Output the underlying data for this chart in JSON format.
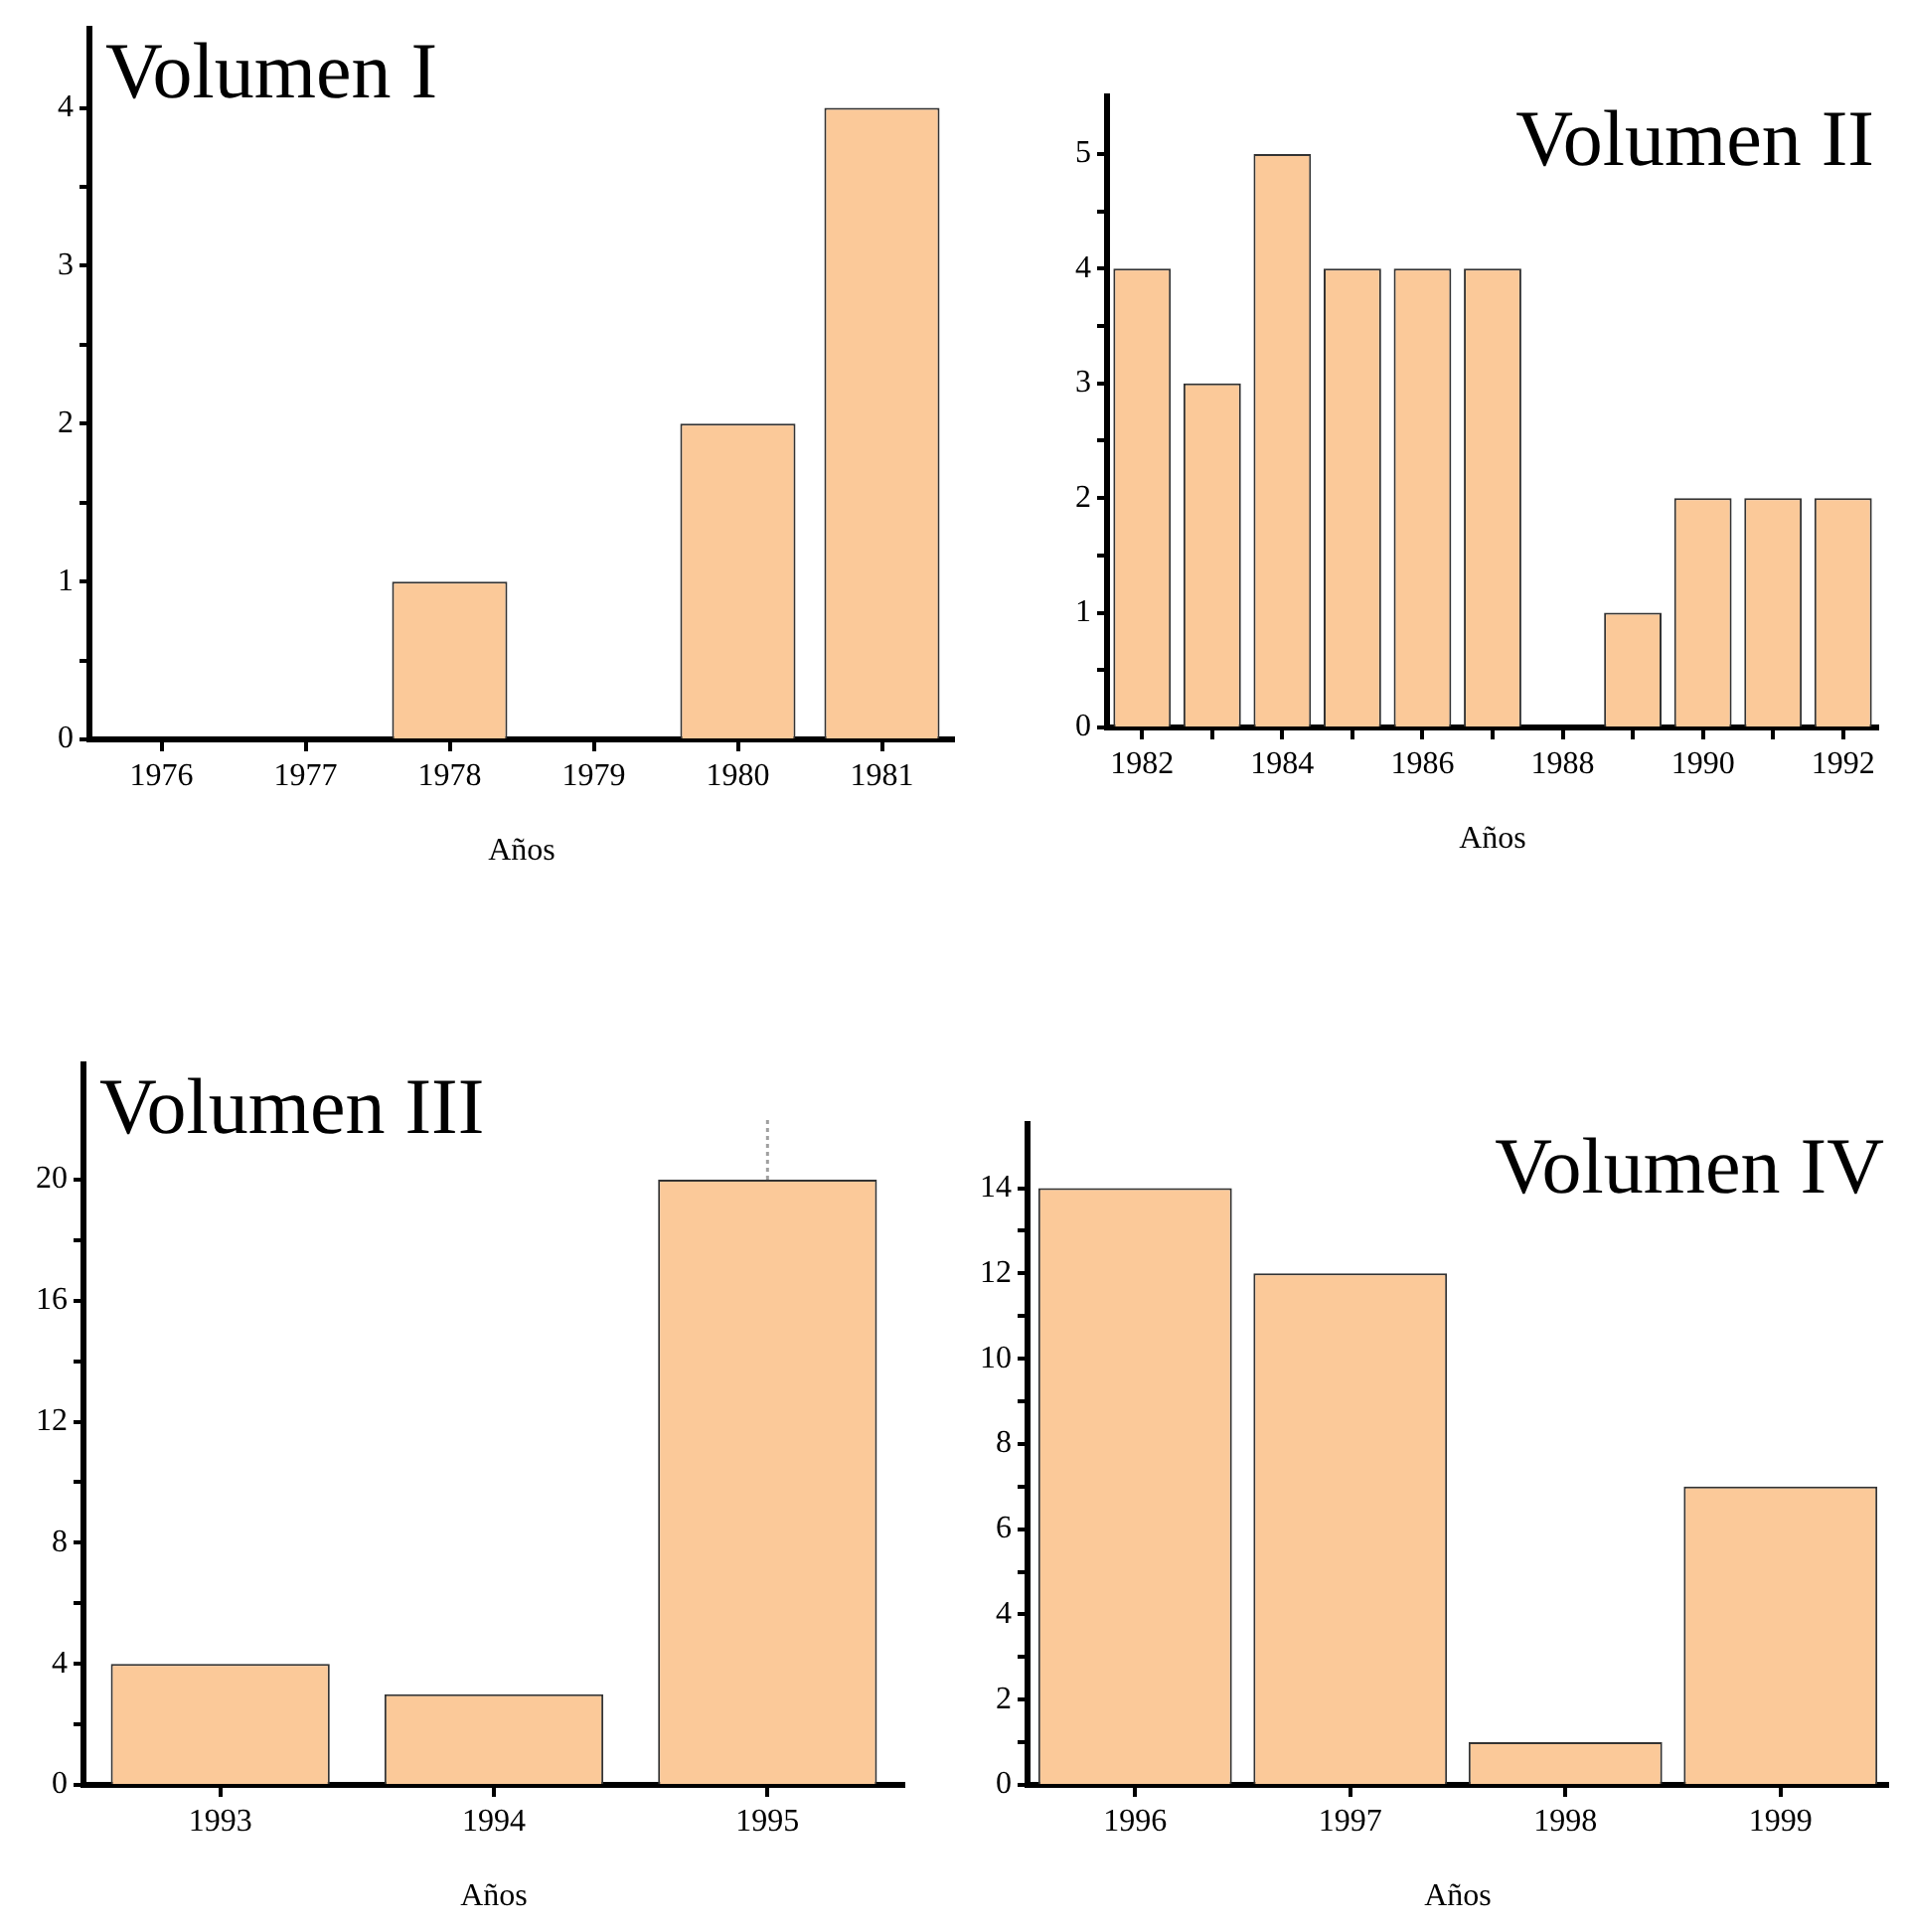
{
  "chart_data": [
    {
      "type": "bar",
      "title": "Volumen I",
      "xlabel": "Años",
      "categories": [
        "1976",
        "1977",
        "1978",
        "1979",
        "1980",
        "1981"
      ],
      "values": [
        0,
        0,
        1,
        0,
        2,
        4
      ],
      "color": "#fbc999",
      "ylim": [
        0,
        4.5
      ],
      "yticks": [
        0,
        {
          "value": 0.5,
          "label": null
        },
        1,
        {
          "value": 1.5,
          "label": null
        },
        2,
        {
          "value": 2.5,
          "label": null
        },
        3,
        {
          "value": 3.5,
          "label": null
        },
        4
      ],
      "grid": false,
      "legend": false
    },
    {
      "type": "bar",
      "title": "Volumen II",
      "xlabel": "Años",
      "categories": [
        "1982",
        null,
        "1984",
        null,
        "1986",
        null,
        "1988",
        null,
        "1990",
        null,
        "1992"
      ],
      "values": [
        4,
        3,
        5,
        4,
        4,
        4,
        0,
        1,
        2,
        2,
        2
      ],
      "color": "#fbc999",
      "ylim": [
        0,
        5.5
      ],
      "yticks": [
        0,
        {
          "value": 0.5,
          "label": null
        },
        1,
        {
          "value": 1.5,
          "label": null
        },
        2,
        {
          "value": 2.5,
          "label": null
        },
        3,
        {
          "value": 3.5,
          "label": null
        },
        4,
        {
          "value": 4.5,
          "label": null
        },
        5
      ],
      "grid": false,
      "legend": false
    },
    {
      "type": "bar",
      "title": "Volumen III",
      "xlabel": "Años",
      "categories": [
        "1993",
        "1994",
        "1995"
      ],
      "values": [
        4,
        3,
        20
      ],
      "errors": [
        null,
        null,
        [
          20,
          22
        ]
      ],
      "color": "#fbc999",
      "ylim": [
        0,
        23.8
      ],
      "yticks": [
        0,
        {
          "value": 2,
          "label": null
        },
        4,
        {
          "value": 6,
          "label": null
        },
        8,
        {
          "value": 10,
          "label": null
        },
        12,
        {
          "value": 14,
          "label": null
        },
        16,
        {
          "value": 18,
          "label": null
        },
        20
      ],
      "grid": false,
      "legend": false
    },
    {
      "type": "bar",
      "title": "Volumen IV",
      "xlabel": "Años",
      "categories": [
        "1996",
        "1997",
        "1998",
        "1999"
      ],
      "values": [
        14,
        12,
        1,
        7
      ],
      "color": "#fbc999",
      "ylim": [
        0,
        15.5
      ],
      "yticks": [
        0,
        {
          "value": 1,
          "label": null
        },
        2,
        {
          "value": 3,
          "label": null
        },
        4,
        {
          "value": 5,
          "label": null
        },
        6,
        {
          "value": 7,
          "label": null
        },
        8,
        {
          "value": 9,
          "label": null
        },
        10,
        {
          "value": 11,
          "label": null
        },
        12,
        {
          "value": 13,
          "label": null
        },
        14
      ],
      "grid": false,
      "legend": false
    }
  ]
}
